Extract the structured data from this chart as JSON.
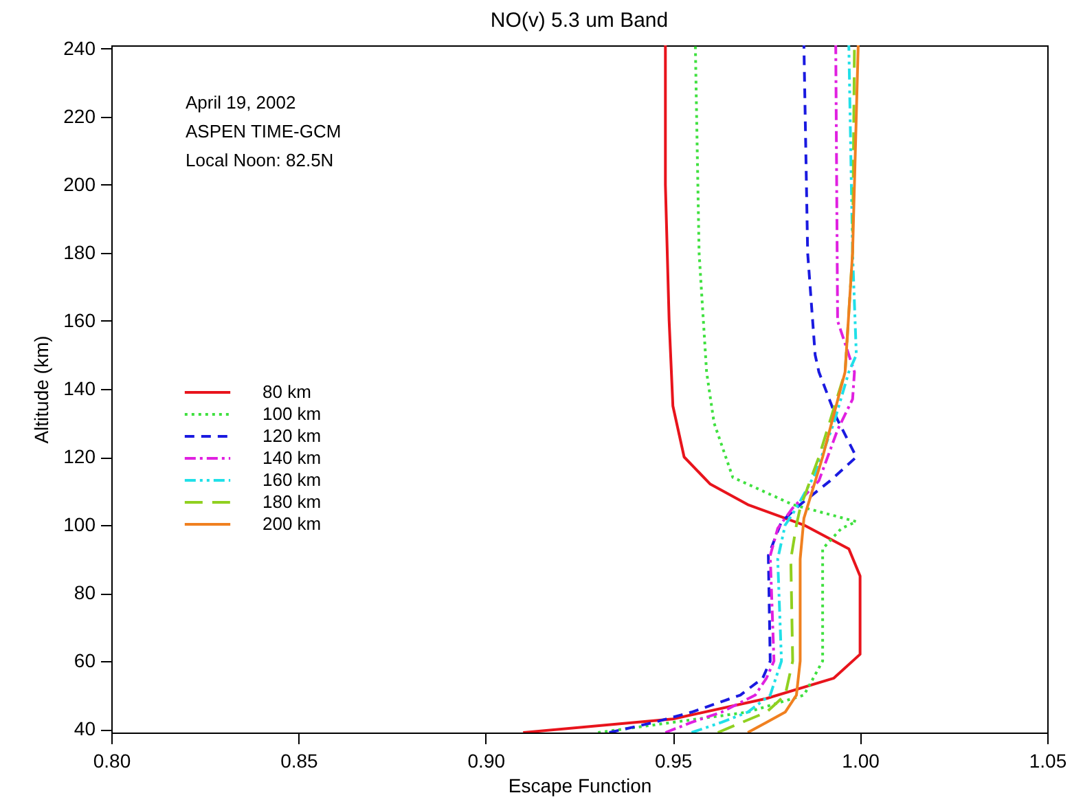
{
  "chart_data": {
    "type": "line",
    "title": "NO(v) 5.3 um Band",
    "xlabel": "Escape Function",
    "ylabel": "Altitude (km)",
    "annotations": [
      "April 19, 2002",
      "ASPEN TIME-GCM",
      "Local Noon: 82.5N"
    ],
    "xlim": [
      0.8,
      1.05
    ],
    "xticks": [
      {
        "value": 0.8,
        "label": "0.80"
      },
      0.85,
      {
        "value": 0.9,
        "label": "0.90"
      },
      0.95,
      {
        "value": 1.0,
        "label": "1.00"
      },
      1.05
    ],
    "ylim": [
      39,
      241
    ],
    "yticks": [
      40,
      60,
      80,
      100,
      120,
      140,
      160,
      180,
      200,
      220,
      240
    ],
    "grid": false,
    "legend": "left",
    "marker": "none",
    "series": [
      {
        "name": "80 km",
        "color": "#e8141c",
        "line_style": "solid",
        "values": [
          39,
          43,
          49,
          55,
          62,
          85,
          93,
          100,
          106,
          112,
          120,
          135,
          160,
          200,
          241
        ],
        "x": [
          0.91,
          0.95,
          0.975,
          0.993,
          1.0,
          1.0,
          0.997,
          0.985,
          0.97,
          0.96,
          0.953,
          0.95,
          0.949,
          0.948,
          0.948
        ]
      },
      {
        "name": "100 km",
        "color": "#3fe03f",
        "line_style": "dotted",
        "values": [
          39,
          42,
          45,
          50,
          60,
          90,
          93,
          99,
          101,
          106,
          114,
          130,
          145,
          180,
          241
        ],
        "x": [
          0.93,
          0.95,
          0.97,
          0.985,
          0.99,
          0.99,
          0.99,
          0.995,
          0.999,
          0.982,
          0.966,
          0.961,
          0.959,
          0.957,
          0.956
        ]
      },
      {
        "name": "120 km",
        "color": "#1a1ae0",
        "line_style": "dashed",
        "values": [
          39,
          42,
          45,
          50,
          55,
          60,
          91,
          101,
          106,
          113,
          120,
          132,
          145,
          150,
          180,
          241
        ],
        "x": [
          0.933,
          0.945,
          0.955,
          0.968,
          0.974,
          0.976,
          0.9755,
          0.979,
          0.984,
          0.992,
          0.999,
          0.9935,
          0.989,
          0.988,
          0.986,
          0.985
        ]
      },
      {
        "name": "140 km",
        "color": "#e020e0",
        "line_style": "dashdot",
        "values": [
          39,
          42,
          45,
          50,
          55,
          60,
          91,
          99,
          105,
          113,
          128,
          137,
          145,
          160,
          241
        ],
        "x": [
          0.948,
          0.955,
          0.963,
          0.972,
          0.975,
          0.977,
          0.976,
          0.978,
          0.982,
          0.989,
          0.994,
          0.998,
          0.9985,
          0.994,
          0.9935
        ]
      },
      {
        "name": "160 km",
        "color": "#20e0e8",
        "line_style": "dashdotdot",
        "values": [
          39,
          42,
          45,
          50,
          60,
          90,
          100,
          105,
          115,
          130,
          145,
          150,
          180,
          241
        ],
        "x": [
          0.955,
          0.963,
          0.97,
          0.976,
          0.979,
          0.978,
          0.98,
          0.983,
          0.988,
          0.993,
          0.997,
          0.999,
          0.998,
          0.997
        ]
      },
      {
        "name": "180 km",
        "color": "#90d020",
        "line_style": "longdashed",
        "values": [
          39,
          45,
          50,
          60,
          90,
          100,
          105,
          120,
          145,
          180,
          241
        ],
        "x": [
          0.962,
          0.975,
          0.98,
          0.982,
          0.9815,
          0.983,
          0.984,
          0.989,
          0.996,
          0.998,
          0.9985
        ]
      },
      {
        "name": "200 km",
        "color": "#f08020",
        "line_style": "solid",
        "values": [
          39,
          42,
          45,
          50,
          60,
          90,
          102,
          120,
          145,
          180,
          241
        ],
        "x": [
          0.97,
          0.975,
          0.98,
          0.983,
          0.984,
          0.984,
          0.985,
          0.99,
          0.996,
          0.998,
          0.9995
        ]
      }
    ]
  }
}
